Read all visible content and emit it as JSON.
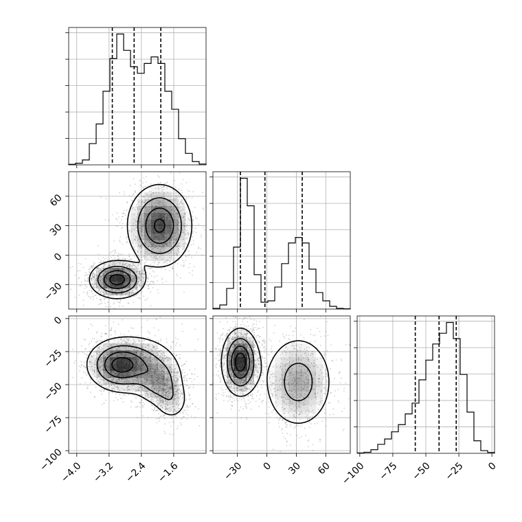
{
  "chart_data": {
    "type": "corner",
    "grid": true,
    "parameters": [
      {
        "range": [
          -4.2,
          -0.8
        ],
        "ticks": [
          -4.0,
          -3.2,
          -2.4,
          -1.6
        ],
        "tick_labels": [
          "−4.0",
          "−3.2",
          "−2.4",
          "−1.6"
        ]
      },
      {
        "range": [
          -55,
          85
        ],
        "ticks": [
          -30,
          0,
          30,
          60
        ],
        "tick_labels": [
          "−30",
          "0",
          "30",
          "60"
        ]
      },
      {
        "range": [
          -102,
          2
        ],
        "ticks": [
          -100,
          -75,
          -50,
          -25,
          0
        ],
        "tick_labels": [
          "−100",
          "−75",
          "−50",
          "−25",
          "0"
        ]
      }
    ],
    "histograms": [
      {
        "bin_edges": [
          -4.2,
          -4.03,
          -3.86,
          -3.69,
          -3.52,
          -3.35,
          -3.18,
          -3.01,
          -2.84,
          -2.67,
          -2.5,
          -2.33,
          -2.16,
          -1.99,
          -1.82,
          -1.65,
          -1.48,
          -1.31,
          -1.14,
          -0.97,
          -0.8
        ],
        "counts": [
          0.3,
          1.0,
          3.0,
          13.0,
          25.0,
          45.0,
          65.0,
          80.0,
          70.0,
          60.0,
          56.0,
          62.0,
          66.0,
          62.0,
          45.0,
          34.0,
          16.0,
          7.0,
          2.0,
          0.5
        ],
        "quantiles": [
          -3.12,
          -2.58,
          -1.92
        ]
      },
      {
        "bin_edges": [
          -55,
          -48,
          -41,
          -34,
          -27,
          -20,
          -13,
          -6,
          1,
          8,
          15,
          22,
          29,
          36,
          43,
          50,
          57,
          64,
          71,
          78,
          85
        ],
        "counts": [
          0.5,
          3.0,
          15.0,
          45.0,
          95.0,
          75.0,
          25.0,
          5.0,
          6.0,
          16.0,
          33.0,
          48.0,
          52.0,
          48.0,
          29.0,
          12.0,
          6.0,
          2.0,
          0.5,
          0.2
        ],
        "quantiles": [
          -27,
          -2,
          36
        ]
      },
      {
        "bin_edges": [
          -102,
          -96.8,
          -91.6,
          -86.4,
          -81.2,
          -76,
          -70.8,
          -65.6,
          -60.4,
          -55.2,
          -50,
          -44.8,
          -39.6,
          -34.4,
          -29.2,
          -24,
          -18.8,
          -13.6,
          -8.4,
          -3.2,
          2
        ],
        "counts": [
          0.2,
          0.6,
          2.0,
          5.0,
          8.0,
          12.0,
          16.0,
          22.0,
          28.0,
          41.0,
          52.0,
          61.0,
          67.0,
          73.0,
          64.0,
          44.0,
          23.0,
          7.0,
          1.5,
          0.5
        ],
        "quantiles": [
          -58,
          -40,
          -27
        ]
      }
    ],
    "joint": [
      {
        "x_param": 0,
        "y_param": 1,
        "modes": [
          {
            "x": -3.0,
            "y": -25,
            "sx": 0.32,
            "sy": 9,
            "w": 1.0
          },
          {
            "x": -1.95,
            "y": 30,
            "sx": 0.38,
            "sy": 20,
            "w": 0.9
          }
        ]
      },
      {
        "x_param": 0,
        "y_param": 2,
        "modes": [
          {
            "x": -3.0,
            "y": -35,
            "sx": 0.36,
            "sy": 9,
            "w": 1.0
          },
          {
            "x": -2.5,
            "y": -35,
            "sx": 0.5,
            "sy": 11,
            "w": 0.7
          },
          {
            "x": -1.95,
            "y": -48,
            "sx": 0.28,
            "sy": 9,
            "w": 0.6
          },
          {
            "x": -1.65,
            "y": -62,
            "sx": 0.22,
            "sy": 8,
            "w": 0.35
          }
        ]
      },
      {
        "x_param": 1,
        "y_param": 2,
        "modes": [
          {
            "x": -27,
            "y": -33,
            "sx": 9,
            "sy": 12,
            "w": 1.0
          },
          {
            "x": 32,
            "y": -48,
            "sx": 18,
            "sy": 18,
            "w": 0.45
          }
        ]
      }
    ]
  }
}
